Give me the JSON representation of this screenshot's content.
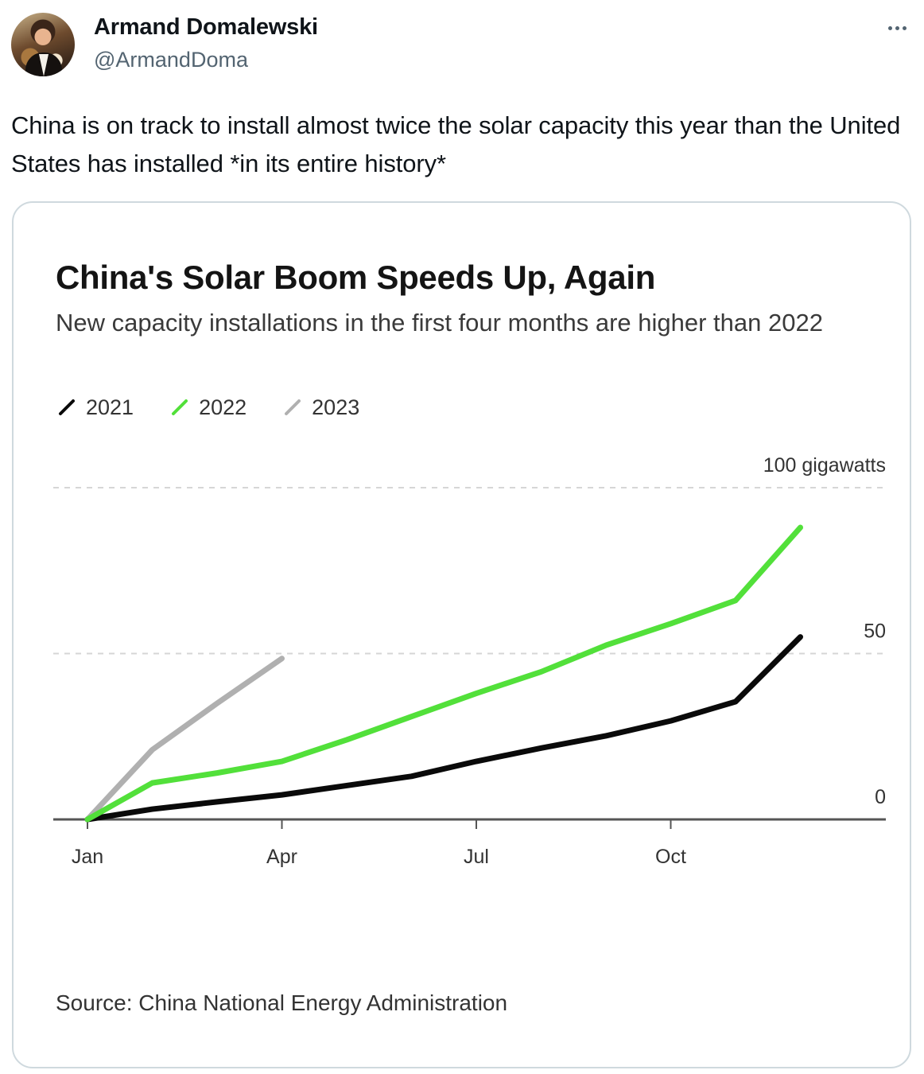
{
  "tweet": {
    "author_name": "Armand Domalewski",
    "author_handle": "@ArmandDoma",
    "text": "China is on track to install almost twice the solar capacity this year than the United States has installed *in its entire history*"
  },
  "chart_card": {
    "source": "Source: China National Energy Administration"
  },
  "colors": {
    "series_2021": "#0a0a0a",
    "series_2022": "#52e03a",
    "series_2023": "#b0b0b0",
    "grid": "#d6d6d6",
    "axis": "#555555"
  },
  "chart_data": {
    "type": "line",
    "title": "China's Solar Boom Speeds Up, Again",
    "subtitle": "New capacity installations in the first four months are higher than 2022",
    "x_ticks": [
      "Jan",
      "Apr",
      "Jul",
      "Oct"
    ],
    "y_ticks": [
      "0",
      "50"
    ],
    "y_unit_label": "100 gigawatts",
    "ylim": [
      0,
      100
    ],
    "grid": "horizontal dashed",
    "legend_placement": "top-left",
    "series": [
      {
        "name": "2021",
        "color": "#0a0a0a",
        "months": [
          1,
          2,
          3,
          4,
          5,
          6,
          7,
          8,
          9,
          10,
          11,
          12
        ],
        "values": [
          0,
          3.1,
          5.3,
          7.4,
          10.2,
          13.0,
          17.5,
          21.5,
          25.2,
          29.7,
          35.5,
          55
        ]
      },
      {
        "name": "2022",
        "color": "#52e03a",
        "months": [
          1,
          2,
          3,
          4,
          5,
          6,
          7,
          8,
          9,
          10,
          11,
          12
        ],
        "values": [
          0,
          11.0,
          14.0,
          17.5,
          24.0,
          31.0,
          38.0,
          44.5,
          52.5,
          59.0,
          66.0,
          88
        ]
      },
      {
        "name": "2023",
        "color": "#b0b0b0",
        "months": [
          1,
          2,
          3,
          4
        ],
        "values": [
          0,
          21.0,
          35.0,
          48.5
        ]
      }
    ]
  }
}
